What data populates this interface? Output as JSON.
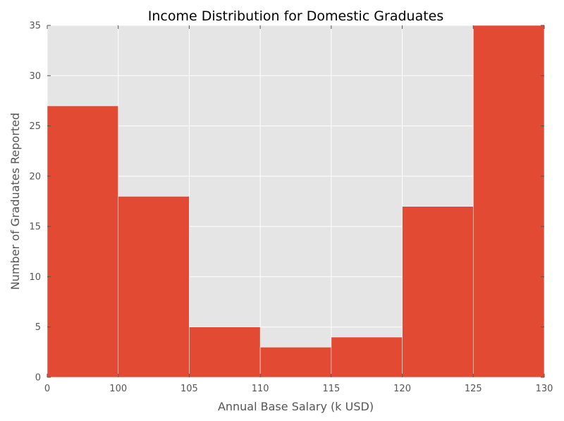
{
  "chart_data": {
    "type": "bar",
    "title": "Income Distribution for Domestic Graduates",
    "xlabel": "Annual Base Salary (k USD)",
    "ylabel": "Number of Graduates Reported",
    "x_tick_labels": [
      "0",
      "100",
      "105",
      "110",
      "115",
      "120",
      "125",
      "130"
    ],
    "y_ticks": [
      0,
      5,
      10,
      15,
      20,
      25,
      30,
      35
    ],
    "ylim": [
      0,
      35
    ],
    "grid": true,
    "categories": [
      "0-100",
      "100-105",
      "105-110",
      "110-115",
      "115-120",
      "120-125",
      "125-130"
    ],
    "values": [
      27,
      18,
      5,
      3,
      4,
      17,
      35
    ],
    "colors": {
      "bar": "#E24A33",
      "plot_background": "#E5E5E5",
      "grid": "#FFFFFF",
      "text": "#555555"
    }
  }
}
